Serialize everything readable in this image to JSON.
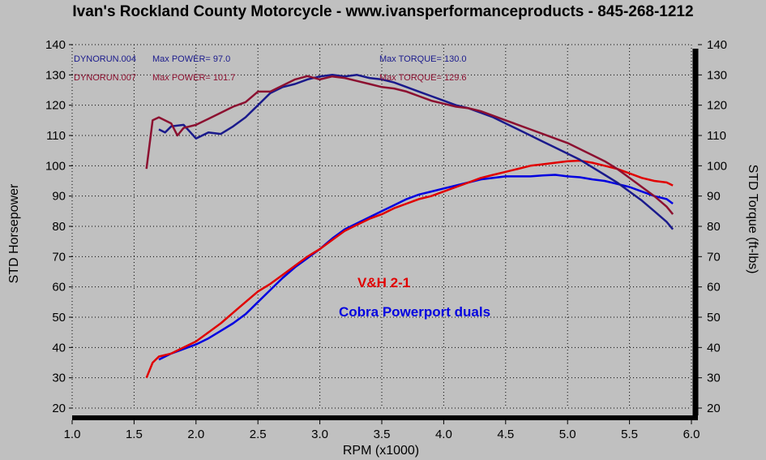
{
  "header": {
    "title": "Ivan's Rockland County Motorcycle - www.ivansperformanceproducts - 845-268-1212"
  },
  "chart_data": {
    "type": "line",
    "xlabel": "RPM (x1000)",
    "ylabel_left": "STD Horsepower",
    "ylabel_right": "STD Torque (ft-lbs)",
    "xlim": [
      1.0,
      6.0
    ],
    "ylim": [
      20,
      140
    ],
    "xticks": [
      "1.0",
      "1.5",
      "2.0",
      "2.5",
      "3.0",
      "3.5",
      "4.0",
      "4.5",
      "5.0",
      "5.5",
      "6.0"
    ],
    "yticks": [
      "20",
      "30",
      "40",
      "50",
      "60",
      "70",
      "80",
      "90",
      "100",
      "110",
      "120",
      "130",
      "140"
    ],
    "legend": {
      "run1_name": "DYNORUN.004",
      "run1_power": "Max POWER= 97.0",
      "run1_torque": "Max TORQUE= 130.0",
      "run2_name": "DYNORUN.007",
      "run2_power": "Max POWER= 101.7",
      "run2_torque": "Max TORQUE= 129.6"
    },
    "annotations": {
      "red_label": "V&H 2-1",
      "blue_label": "Cobra Powerport duals"
    },
    "colors": {
      "blue": "#0000e0",
      "red": "#e00000",
      "navy": "#1a1a8c",
      "maroon": "#8c1030"
    },
    "series": [
      {
        "name": "DYNORUN.004 Power",
        "color": "#0000e0",
        "x": [
          1.7,
          1.8,
          1.9,
          2.0,
          2.1,
          2.2,
          2.3,
          2.4,
          2.5,
          2.6,
          2.7,
          2.8,
          2.9,
          3.0,
          3.1,
          3.2,
          3.3,
          3.4,
          3.5,
          3.6,
          3.7,
          3.8,
          3.9,
          4.0,
          4.1,
          4.2,
          4.3,
          4.4,
          4.5,
          4.6,
          4.7,
          4.8,
          4.9,
          5.0,
          5.1,
          5.2,
          5.3,
          5.4,
          5.5,
          5.6,
          5.7,
          5.8,
          5.85
        ],
        "y": [
          36,
          38,
          39.5,
          41,
          43,
          45.5,
          48,
          51,
          55,
          59,
          63,
          66.5,
          69.5,
          72.5,
          76,
          79,
          81,
          83,
          85,
          87,
          89,
          90.5,
          91.5,
          92.5,
          93.5,
          94.5,
          95.5,
          96,
          96.5,
          96.5,
          96.5,
          96.8,
          97,
          96.5,
          96.2,
          95.5,
          95,
          94,
          93,
          91.5,
          90,
          89,
          87.5
        ]
      },
      {
        "name": "DYNORUN.007 Power",
        "color": "#e00000",
        "x": [
          1.6,
          1.65,
          1.7,
          1.8,
          1.9,
          2.0,
          2.1,
          2.2,
          2.3,
          2.4,
          2.5,
          2.6,
          2.7,
          2.8,
          2.9,
          3.0,
          3.1,
          3.2,
          3.3,
          3.4,
          3.5,
          3.6,
          3.7,
          3.8,
          3.9,
          4.0,
          4.1,
          4.2,
          4.3,
          4.4,
          4.5,
          4.6,
          4.7,
          4.8,
          4.9,
          5.0,
          5.1,
          5.2,
          5.3,
          5.4,
          5.5,
          5.6,
          5.7,
          5.8,
          5.85
        ],
        "y": [
          30,
          35,
          37,
          38,
          40,
          42,
          45,
          48,
          51.5,
          55,
          58.5,
          61,
          64,
          67,
          70,
          72.5,
          75.5,
          78.5,
          80.5,
          82.5,
          84,
          86,
          87.5,
          89,
          90,
          91.5,
          93,
          94.5,
          96,
          97,
          98,
          99,
          100,
          100.5,
          101,
          101.5,
          101.7,
          101,
          100,
          99,
          97.5,
          96,
          95,
          94.5,
          93.5
        ]
      },
      {
        "name": "DYNORUN.004 Torque",
        "color": "#1a1a8c",
        "x": [
          1.7,
          1.75,
          1.8,
          1.9,
          2.0,
          2.1,
          2.2,
          2.3,
          2.4,
          2.5,
          2.6,
          2.7,
          2.8,
          2.9,
          3.0,
          3.1,
          3.2,
          3.3,
          3.4,
          3.5,
          3.6,
          3.7,
          3.8,
          3.9,
          4.0,
          4.1,
          4.2,
          4.3,
          4.4,
          4.5,
          4.6,
          4.7,
          4.8,
          4.9,
          5.0,
          5.1,
          5.2,
          5.3,
          5.4,
          5.5,
          5.6,
          5.7,
          5.8,
          5.85
        ],
        "y": [
          112,
          111,
          113,
          113.5,
          109,
          111,
          110.5,
          113,
          116,
          120,
          124,
          126,
          127,
          128.5,
          129.5,
          130,
          129.5,
          130,
          129,
          128.5,
          127.5,
          126,
          124.5,
          123,
          121.5,
          120,
          119,
          117.5,
          116,
          114,
          112,
          110,
          108,
          106,
          104,
          102,
          99.5,
          97,
          94.5,
          91.5,
          88.5,
          85,
          81.5,
          79
        ]
      },
      {
        "name": "DYNORUN.007 Torque",
        "color": "#8c1030",
        "x": [
          1.6,
          1.65,
          1.7,
          1.8,
          1.85,
          1.9,
          2.0,
          2.1,
          2.2,
          2.3,
          2.4,
          2.5,
          2.6,
          2.7,
          2.8,
          2.9,
          3.0,
          3.1,
          3.2,
          3.3,
          3.4,
          3.5,
          3.6,
          3.7,
          3.8,
          3.9,
          4.0,
          4.1,
          4.2,
          4.3,
          4.4,
          4.5,
          4.6,
          4.7,
          4.8,
          4.9,
          5.0,
          5.1,
          5.2,
          5.3,
          5.4,
          5.5,
          5.6,
          5.7,
          5.8,
          5.85
        ],
        "y": [
          99,
          115,
          116,
          114,
          110,
          112.5,
          113.5,
          115.5,
          117.5,
          119.5,
          121,
          124.5,
          124.5,
          126.5,
          128.5,
          129.6,
          128.5,
          129.5,
          129,
          128,
          127,
          126,
          125.5,
          124.5,
          123,
          121.5,
          120.5,
          119.5,
          119,
          118,
          116.5,
          115,
          113.5,
          112,
          110.5,
          109,
          107.5,
          105.5,
          103.5,
          101.5,
          99,
          96,
          93,
          90,
          86.5,
          84
        ]
      }
    ]
  }
}
